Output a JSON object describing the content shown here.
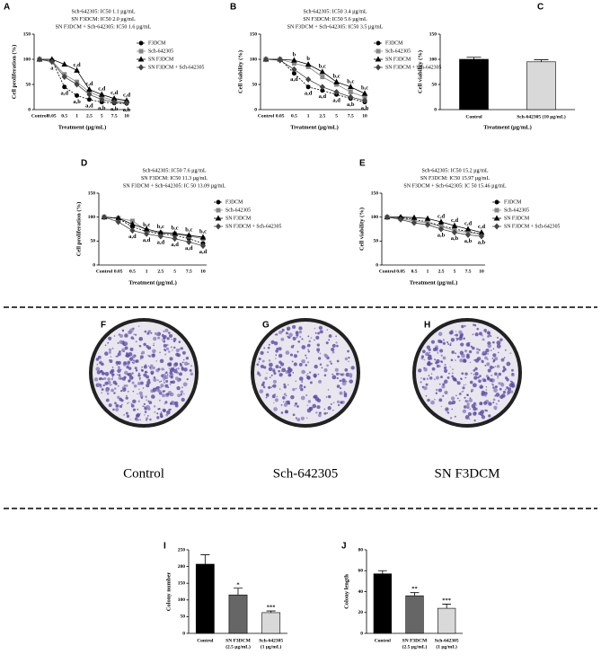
{
  "chart_data": [
    {
      "type": "line",
      "panel": "A",
      "subtitle": [
        "Sch-642305: IC50 1.1 µg/mL",
        "SN F3DCM: IC50 2.0 µg/mL",
        "SN F3DCM + Sch-642305: IC50 1.6 µg/mL"
      ],
      "ylabel": "Cell proliferation (%)",
      "xlabel": "Treatment (µg/mL)",
      "categories": [
        "Control",
        "0.05",
        "0.5",
        "1",
        "2.5",
        "5",
        "7.5",
        "10"
      ],
      "ylim": [
        0,
        150
      ],
      "yticks": [
        0,
        50,
        100,
        150
      ],
      "series": [
        {
          "name": "F3DCM",
          "color": "#000000",
          "marker": "circle",
          "dash": true,
          "values": [
            100,
            98,
            45,
            28,
            20,
            15,
            13,
            12
          ]
        },
        {
          "name": "Sch-642305",
          "color": "#888888",
          "marker": "square",
          "dash": false,
          "values": [
            100,
            97,
            70,
            55,
            35,
            25,
            18,
            15
          ]
        },
        {
          "name": "SN F3DCM",
          "color": "#000000",
          "marker": "triangle",
          "dash": false,
          "values": [
            100,
            100,
            90,
            78,
            40,
            30,
            22,
            18
          ]
        },
        {
          "name": "SN F3DCM + Sch-642305",
          "color": "#444444",
          "marker": "diamond",
          "dash": false,
          "values": [
            100,
            95,
            65,
            50,
            30,
            20,
            15,
            13
          ]
        }
      ],
      "annotations": [
        {
          "category": "0.05",
          "series": 3,
          "position": "below",
          "text": "a"
        },
        {
          "category": "0.5",
          "series": 0,
          "position": "below",
          "text": "a,d"
        },
        {
          "category": "1",
          "series": 2,
          "position": "above",
          "text": "c,d"
        },
        {
          "category": "1",
          "series": 0,
          "position": "below",
          "text": "a,b"
        },
        {
          "category": "2.5",
          "series": 2,
          "position": "above",
          "text": "c,d"
        },
        {
          "category": "2.5",
          "series": 0,
          "position": "below",
          "text": "a,d"
        },
        {
          "category": "5",
          "series": 2,
          "position": "above",
          "text": "c,d"
        },
        {
          "category": "5",
          "series": 0,
          "position": "below",
          "text": "a,b"
        },
        {
          "category": "7.5",
          "series": 2,
          "position": "above",
          "text": "c,d"
        },
        {
          "category": "7.5",
          "series": 0,
          "position": "below",
          "text": "a,b"
        },
        {
          "category": "10",
          "series": 2,
          "position": "above",
          "text": "c,d"
        },
        {
          "category": "10",
          "series": 0,
          "position": "below",
          "text": "a,b"
        }
      ]
    },
    {
      "type": "line",
      "panel": "B",
      "subtitle": [
        "Sch-642305: IC50 3.4 µg/mL",
        "SN F3DCM: IC50 5.6 µg/mL",
        "SN F3DCM + Sch-642305: IC50 3.5 µg/mL"
      ],
      "ylabel": "Cell viability (%)",
      "xlabel": "Treatment (µg/mL)",
      "categories": [
        "Control",
        "0.05",
        "0.5",
        "1",
        "2.5",
        "5",
        "7.5",
        "10"
      ],
      "ylim": [
        0,
        150
      ],
      "yticks": [
        0,
        50,
        100,
        150
      ],
      "series": [
        {
          "name": "F3DCM",
          "color": "#000000",
          "marker": "circle",
          "dash": true,
          "values": [
            100,
            100,
            72,
            45,
            38,
            30,
            22,
            15
          ]
        },
        {
          "name": "Sch-642305",
          "color": "#888888",
          "marker": "square",
          "dash": false,
          "values": [
            100,
            100,
            92,
            85,
            65,
            50,
            35,
            25
          ]
        },
        {
          "name": "SN F3DCM",
          "color": "#000000",
          "marker": "triangle",
          "dash": false,
          "values": [
            100,
            100,
            98,
            90,
            75,
            55,
            45,
            32
          ]
        },
        {
          "name": "SN F3DCM + Sch-642305",
          "color": "#444444",
          "marker": "diamond",
          "dash": false,
          "values": [
            100,
            98,
            80,
            60,
            45,
            35,
            25,
            18
          ]
        }
      ],
      "annotations": [
        {
          "category": "0.5",
          "series": 2,
          "position": "above",
          "text": "b"
        },
        {
          "category": "0.5",
          "series": 0,
          "position": "below",
          "text": "a,d"
        },
        {
          "category": "1",
          "series": 2,
          "position": "above",
          "text": "b"
        },
        {
          "category": "1",
          "series": 0,
          "position": "below",
          "text": "a,d"
        },
        {
          "category": "2.5",
          "series": 2,
          "position": "above",
          "text": "b,c"
        },
        {
          "category": "2.5",
          "series": 0,
          "position": "below",
          "text": "a,d"
        },
        {
          "category": "5",
          "series": 2,
          "position": "above",
          "text": "b,c"
        },
        {
          "category": "5",
          "series": 0,
          "position": "below",
          "text": "a,d"
        },
        {
          "category": "7.5",
          "series": 2,
          "position": "above",
          "text": "b,c"
        },
        {
          "category": "7.5",
          "series": 0,
          "position": "below",
          "text": "a,b"
        },
        {
          "category": "10",
          "series": 2,
          "position": "above",
          "text": "b,c"
        },
        {
          "category": "10",
          "series": 0,
          "position": "below",
          "text": "a,b"
        }
      ]
    },
    {
      "type": "bar",
      "panel": "C",
      "ylabel": "Cell viability (%)",
      "xlabel": "Treatment (µg/mL)",
      "categories": [
        "Control",
        "Sch-642305 (10 µg/mL)"
      ],
      "values": [
        100,
        95
      ],
      "errors": [
        4,
        4
      ],
      "colors": [
        "#000000",
        "#d9d9d9"
      ],
      "ylim": [
        0,
        150
      ],
      "yticks": [
        0,
        50,
        100,
        150
      ]
    },
    {
      "type": "line",
      "panel": "D",
      "subtitle": [
        "Sch-642305: IC50 7.6 µg/mL",
        "SN F3DCM: IC50 11.3 µg/mL",
        "SN F3DCM + Sch-642305: IC 50 13.09 µg/mL"
      ],
      "ylabel": "Cell proliferation (%)",
      "xlabel": "Treatment (µg/mL)",
      "categories": [
        "Control",
        "0.05",
        "0.5",
        "1",
        "2.5",
        "5",
        "7.5",
        "10"
      ],
      "ylim": [
        0,
        150
      ],
      "yticks": [
        0,
        50,
        100,
        150
      ],
      "series": [
        {
          "name": "F3DCM",
          "color": "#000000",
          "marker": "circle",
          "dash": true,
          "values": [
            100,
            97,
            80,
            70,
            65,
            62,
            55,
            45
          ]
        },
        {
          "name": "Sch-642305",
          "color": "#888888",
          "marker": "square",
          "dash": false,
          "values": [
            100,
            98,
            92,
            72,
            67,
            65,
            60,
            55
          ]
        },
        {
          "name": "SN F3DCM",
          "color": "#000000",
          "marker": "triangle",
          "dash": false,
          "values": [
            100,
            98,
            85,
            75,
            68,
            66,
            62,
            58
          ]
        },
        {
          "name": "SN F3DCM + Sch-642305",
          "color": "#444444",
          "marker": "diamond",
          "dash": false,
          "values": [
            100,
            90,
            72,
            65,
            60,
            55,
            48,
            40
          ]
        }
      ],
      "annotations": [
        {
          "category": "0.5",
          "series": 3,
          "position": "below",
          "text": "a,d"
        },
        {
          "category": "1",
          "series": 1,
          "position": "above",
          "text": "b,c"
        },
        {
          "category": "1",
          "series": 3,
          "position": "below",
          "text": "a,d"
        },
        {
          "category": "2.5",
          "series": 2,
          "position": "above",
          "text": "b,c"
        },
        {
          "category": "2.5",
          "series": 3,
          "position": "below",
          "text": "a,d"
        },
        {
          "category": "5",
          "series": 2,
          "position": "above",
          "text": "b,c"
        },
        {
          "category": "5",
          "series": 3,
          "position": "below",
          "text": "a,d"
        },
        {
          "category": "7.5",
          "series": 2,
          "position": "above",
          "text": "b,c"
        },
        {
          "category": "7.5",
          "series": 3,
          "position": "below",
          "text": "a,d"
        },
        {
          "category": "10",
          "series": 2,
          "position": "above",
          "text": "b,c"
        },
        {
          "category": "10",
          "series": 3,
          "position": "below",
          "text": "a,d"
        }
      ]
    },
    {
      "type": "line",
      "panel": "E",
      "subtitle": [
        "Sch-642305: IC50 15.2 µg/mL",
        "SN F3DCM: IC50 15.97 µg/mL",
        "SN F3DCM + Sch-642305: IC 50 15.46 µg/mL"
      ],
      "ylabel": "Cell viability (%)",
      "xlabel": "Treatment (µg/mL)",
      "categories": [
        "Control",
        "0.05",
        "0.5",
        "1",
        "2.5",
        "5",
        "7.5",
        "10"
      ],
      "ylim": [
        0,
        150
      ],
      "yticks": [
        0,
        50,
        100,
        150
      ],
      "series": [
        {
          "name": "F3DCM",
          "color": "#000000",
          "marker": "circle",
          "dash": true,
          "values": [
            100,
            99,
            95,
            90,
            82,
            75,
            70,
            65
          ]
        },
        {
          "name": "Sch-642305",
          "color": "#888888",
          "marker": "square",
          "dash": false,
          "values": [
            100,
            97,
            92,
            88,
            80,
            72,
            68,
            64
          ]
        },
        {
          "name": "SN F3DCM",
          "color": "#000000",
          "marker": "triangle",
          "dash": false,
          "values": [
            100,
            100,
            99,
            97,
            90,
            82,
            75,
            68
          ]
        },
        {
          "name": "SN F3DCM + Sch-642305",
          "color": "#444444",
          "marker": "diamond",
          "dash": false,
          "values": [
            100,
            95,
            88,
            84,
            75,
            68,
            63,
            60
          ]
        }
      ],
      "annotations": [
        {
          "category": "2.5",
          "series": 2,
          "position": "above",
          "text": "c,d"
        },
        {
          "category": "2.5",
          "series": 3,
          "position": "below",
          "text": "a,b"
        },
        {
          "category": "5",
          "series": 2,
          "position": "above",
          "text": "c,d"
        },
        {
          "category": "5",
          "series": 3,
          "position": "below",
          "text": "a,b"
        },
        {
          "category": "7.5",
          "series": 2,
          "position": "above",
          "text": "c,d"
        },
        {
          "category": "7.5",
          "series": 3,
          "position": "below",
          "text": "a,b"
        },
        {
          "category": "10",
          "series": 2,
          "position": "above",
          "text": "c,d"
        },
        {
          "category": "10",
          "series": 3,
          "position": "below",
          "text": "a,b"
        }
      ]
    },
    {
      "type": "bar",
      "panel": "I",
      "ylabel": "Colony number",
      "categories": [
        [
          "Control"
        ],
        [
          "SN F3DCM",
          "(2.5 µg/mL)"
        ],
        [
          "Sch-642305",
          "(1 µg/mL)"
        ]
      ],
      "values": [
        207,
        115,
        62
      ],
      "errors": [
        28,
        20,
        5
      ],
      "significance": [
        null,
        "*",
        "***"
      ],
      "colors": [
        "#000000",
        "#666666",
        "#d9d9d9"
      ],
      "ylim": [
        0,
        250
      ],
      "yticks": [
        0,
        50,
        100,
        150,
        200,
        250
      ]
    },
    {
      "type": "bar",
      "panel": "J",
      "ylabel": "Colony length",
      "categories": [
        [
          "Control"
        ],
        [
          "SN F3DCM",
          "(2.5 µg/mL)"
        ],
        [
          "Sch-642305",
          "(1 µg/mL)"
        ]
      ],
      "values": [
        57,
        36,
        24
      ],
      "errors": [
        3,
        3,
        4
      ],
      "significance": [
        null,
        "**",
        "***"
      ],
      "colors": [
        "#000000",
        "#666666",
        "#d9d9d9"
      ],
      "ylim": [
        0,
        80
      ],
      "yticks": [
        0,
        20,
        40,
        60,
        80
      ]
    }
  ],
  "images": [
    {
      "panel": "F",
      "label": "Control"
    },
    {
      "panel": "G",
      "label": "Sch-642305"
    },
    {
      "panel": "H",
      "label": "SN F3DCM"
    }
  ]
}
